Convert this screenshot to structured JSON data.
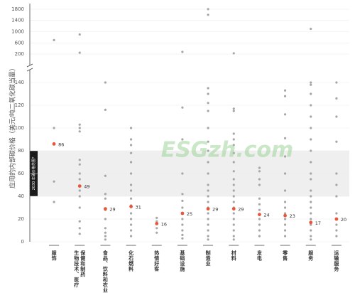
{
  "chart_data": {
    "type": "strip",
    "y_label": "应用的内部碳价格（美元/吨二氧化碳当量）",
    "watermark": "ESGzh.com",
    "band": {
      "range": [
        40,
        80
      ],
      "label": "2030 年碳价格范围*"
    },
    "categories": [
      [
        "服饰"
      ],
      [
        "生物技术、医疗",
        "保健和制药"
      ],
      [
        "食品、饮料和农业"
      ],
      [
        "化石燃料"
      ],
      [
        "热情好客"
      ],
      [
        "基础设施"
      ],
      [
        "制造业"
      ],
      [
        "材料"
      ],
      [
        "发电"
      ],
      [
        "零售"
      ],
      [
        "服务"
      ],
      [
        "运输服务"
      ]
    ],
    "values": [
      86,
      49,
      29,
      31,
      16,
      25,
      29,
      29,
      24,
      23,
      17,
      20
    ],
    "median_color": "#e8553a",
    "point_color": "#a6a6a6",
    "points": [
      [
        100,
        53,
        35
      ],
      [
        103,
        100,
        97,
        72,
        68,
        60,
        55,
        45,
        40,
        30,
        18,
        12,
        7
      ],
      [
        140,
        116,
        58,
        42,
        38,
        28,
        20,
        12,
        8,
        5,
        2
      ],
      [
        100,
        90,
        85,
        78,
        70,
        60,
        50,
        45,
        38,
        32,
        25,
        20,
        15,
        10,
        5
      ],
      [
        21,
        18,
        12,
        8
      ],
      [
        118,
        90,
        60,
        42,
        36,
        30,
        20,
        15,
        10,
        6,
        3
      ],
      [
        135,
        130,
        122,
        115,
        100,
        88,
        80,
        70,
        60,
        50,
        45,
        40,
        35,
        30,
        25,
        20,
        15,
        10,
        5,
        2
      ],
      [
        117,
        115,
        95,
        90,
        85,
        78,
        70,
        62,
        55,
        50,
        45,
        40,
        35,
        30,
        25,
        20,
        15,
        10,
        5,
        2
      ],
      [
        65,
        62,
        55,
        50,
        38,
        33,
        28,
        20,
        15,
        10,
        5
      ],
      [
        133,
        128,
        112,
        91,
        75,
        60,
        45,
        35,
        30,
        25,
        20,
        15,
        10,
        5
      ],
      [
        140,
        138,
        130,
        120,
        110,
        100,
        90,
        80,
        70,
        60,
        55,
        45,
        40,
        35,
        30,
        25,
        20,
        15,
        10,
        5,
        2
      ],
      [
        140,
        126,
        110,
        88,
        60,
        50,
        40,
        25,
        15,
        10,
        5
      ]
    ],
    "upper_points": [
      [
        700
      ],
      [
        900,
        250
      ],
      [],
      [],
      [],
      [
        280
      ],
      [
        1800,
        1600
      ],
      [
        230
      ],
      [],
      [],
      [
        1100
      ],
      []
    ],
    "ylim": [
      0,
      145
    ],
    "yticks": [
      0,
      20,
      40,
      60,
      80,
      100,
      120,
      140
    ],
    "ylim_upper": [
      0,
      2000
    ],
    "yticks_upper": [
      200,
      600,
      1000,
      1400,
      1800
    ],
    "grid": true
  }
}
